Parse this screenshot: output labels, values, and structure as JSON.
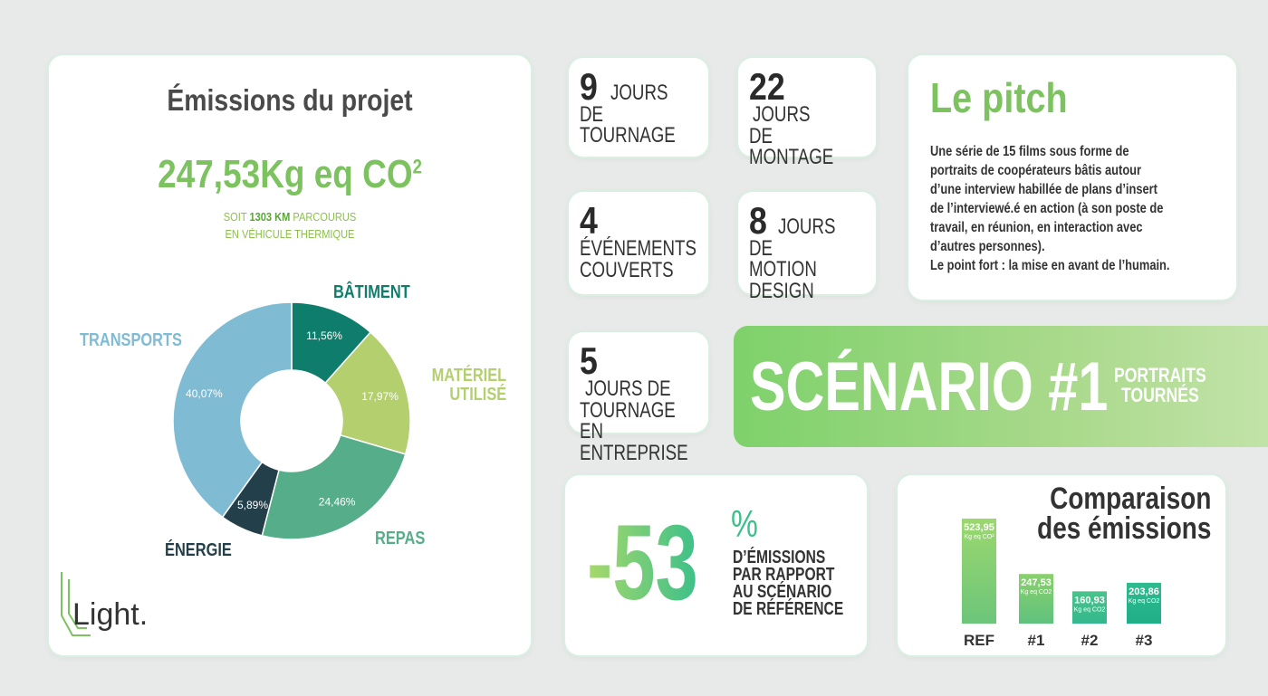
{
  "emissions": {
    "title": "Émissions du projet",
    "total": "247,53Kg eq CO",
    "total_sup": "2",
    "sub_prefix": "SOIT",
    "sub_km": "1303 KM",
    "sub_suffix": "PARCOURUS",
    "sub_line2": "EN VÉHICULE THERMIQUE",
    "logo_text": "Light."
  },
  "stats": [
    {
      "number": "9",
      "text1": "JOURS",
      "text2": "DE TOURNAGE",
      "text3": ""
    },
    {
      "number": "22",
      "text1": "JOURS",
      "text2": "DE MONTAGE",
      "text3": ""
    },
    {
      "number": "4",
      "text1": "",
      "text2": "ÉVÉNEMENTS",
      "text3": "COUVERTS"
    },
    {
      "number": "8",
      "text1": "JOURS",
      "text2": "DE MOTION",
      "text3": "DESIGN"
    },
    {
      "number": "5",
      "text1": "JOURS DE",
      "text2": "TOURNAGE EN",
      "text3": "ENTREPRISE"
    }
  ],
  "pitch": {
    "title": "Le pitch",
    "body_lines": [
      "Une série de 15 films sous forme de",
      "portraits de coopérateurs bâtis autour",
      "d’une interview habillée de plans d’insert",
      "de l’interviewé.é en action (à son poste de",
      "travail, en réunion, en interaction avec",
      "d’autres personnes).",
      "Le point fort : la mise en avant de l’humain."
    ]
  },
  "scenario": {
    "title": "SCÉNARIO #1",
    "sub1": "PORTRAITS",
    "sub2": "TOURNÉS"
  },
  "reduction": {
    "value": "-53",
    "pct": "%",
    "line1": "D’ÉMISSIONS",
    "line2": "PAR RAPPORT",
    "line3": "AU SCÉNARIO",
    "line4": "DE RÉFÉRENCE"
  },
  "comparison": {
    "title1": "Comparaison",
    "title2": "des émissions"
  },
  "colors": {
    "batiment": "#0f7d6b",
    "materiel": "#b4cf6e",
    "repas": "#55ad8a",
    "energie": "#223f4a",
    "transports": "#7fbcd4",
    "accent_green": "#7cc25f"
  },
  "chart_data": [
    {
      "type": "pie",
      "title": "",
      "categories": [
        "BÂTIMENT",
        "MATÉRIEL UTILISÉ",
        "REPAS",
        "ÉNERGIE",
        "TRANSPORTS"
      ],
      "values": [
        11.56,
        17.97,
        24.46,
        5.89,
        40.07
      ],
      "value_labels": [
        "11,56%",
        "17,97%",
        "24,46%",
        "5,89%",
        "40,07%"
      ],
      "legend": "labels outside slices"
    },
    {
      "type": "bar",
      "title": "Comparaison des émissions",
      "categories": [
        "REF",
        "#1",
        "#2",
        "#3"
      ],
      "values": [
        523.95,
        247.53,
        160.93,
        203.86
      ],
      "value_labels": [
        "523,95",
        "247,53",
        "160,93",
        "203,86"
      ],
      "unit_labels": [
        "Kg eq CO²",
        "Kg eq CO2",
        "Kg eq CO2",
        "Kg eq CO2"
      ],
      "ylim": [
        0,
        523.95
      ]
    }
  ]
}
